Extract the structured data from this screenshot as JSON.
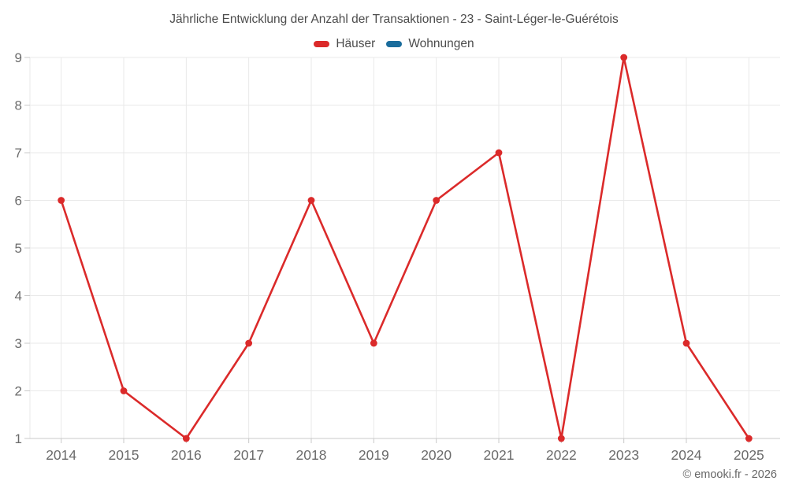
{
  "page": {
    "copyright": "© emooki.fr - 2026"
  },
  "chart_data": {
    "type": "line",
    "title": "Jährliche Entwicklung der Anzahl der Transaktionen - 23 - Saint-Léger-le-Guérétois",
    "x": [
      "2014",
      "2015",
      "2016",
      "2017",
      "2018",
      "2019",
      "2020",
      "2021",
      "2022",
      "2023",
      "2024",
      "2025"
    ],
    "series": [
      {
        "name": "Häuser",
        "color": "#db2a2a",
        "values": [
          6,
          2,
          1,
          3,
          6,
          3,
          6,
          7,
          1,
          9,
          3,
          1
        ]
      },
      {
        "name": "Wohnungen",
        "color": "#1a6c9c",
        "values": []
      }
    ],
    "ylim": [
      1,
      9
    ],
    "yticks": [
      1,
      2,
      3,
      4,
      5,
      6,
      7,
      8,
      9
    ],
    "grid": true,
    "legend_position": "top",
    "xlabel": "",
    "ylabel": ""
  },
  "theme": {
    "background": "#ffffff",
    "grid_color": "#e9e9e9",
    "axis_color": "#c9c9c9",
    "tick_label_color": "#6b6b6b",
    "title_color": "#4c4c4c",
    "legend_label_color": "#4c4c4c",
    "copyright_color": "#666666"
  }
}
